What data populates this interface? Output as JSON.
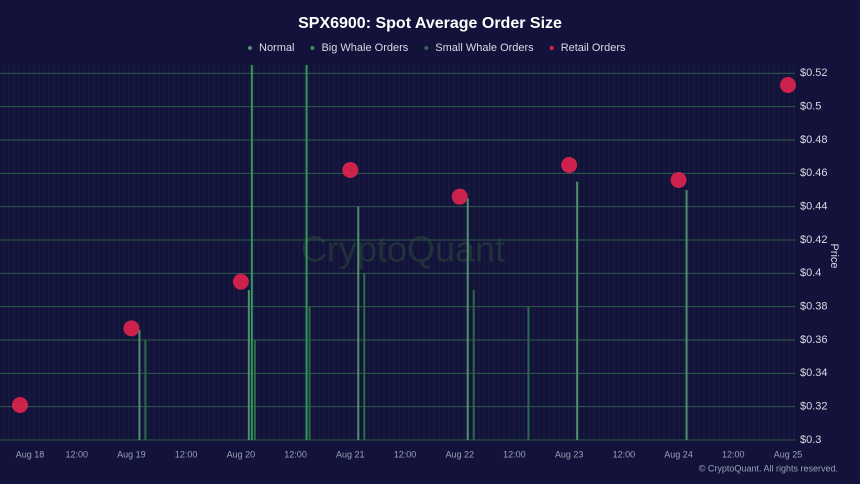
{
  "chart_data": {
    "type": "bubble-spike",
    "title": "SPX6900: Spot Average Order Size",
    "y_label": "Price",
    "watermark": "CryptoQuant",
    "credit": "© CryptoQuant. All rights reserved.",
    "categories": [
      "Aug 18",
      "12:00",
      "Aug 19",
      "12:00",
      "Aug 20",
      "12:00",
      "Aug 21",
      "12:00",
      "Aug 22",
      "12:00",
      "Aug 23",
      "12:00",
      "Aug 24",
      "12:00",
      "Aug 25"
    ],
    "ylim": [
      0.3,
      0.525
    ],
    "yticks": [
      {
        "value": 0.3,
        "label": "$0.3"
      },
      {
        "value": 0.32,
        "label": "$0.32"
      },
      {
        "value": 0.34,
        "label": "$0.34"
      },
      {
        "value": 0.36,
        "label": "$0.36"
      },
      {
        "value": 0.38,
        "label": "$0.38"
      },
      {
        "value": 0.4,
        "label": "$0.4"
      },
      {
        "value": 0.42,
        "label": "$0.42"
      },
      {
        "value": 0.44,
        "label": "$0.44"
      },
      {
        "value": 0.46,
        "label": "$0.46"
      },
      {
        "value": 0.48,
        "label": "$0.48"
      },
      {
        "value": 0.5,
        "label": "$0.5"
      },
      {
        "value": 0.52,
        "label": "$0.52"
      }
    ],
    "grid": true,
    "series": [
      {
        "name": "Normal",
        "color": "#4f8f6c",
        "style": "spike",
        "values": [
          null,
          null,
          0.366,
          null,
          0.39,
          null,
          0.44,
          null,
          0.445,
          null,
          0.455,
          null,
          0.45,
          null,
          null
        ]
      },
      {
        "name": "Big Whale Orders",
        "color": "#2f9a5c",
        "style": "spike",
        "values": [
          null,
          null,
          null,
          null,
          0.525,
          0.525,
          null,
          null,
          null,
          null,
          null,
          null,
          null,
          null,
          null
        ]
      },
      {
        "name": "Small Whale Orders",
        "color": "#2a6b4a",
        "style": "spike",
        "values": [
          null,
          null,
          0.36,
          null,
          0.36,
          0.38,
          0.4,
          null,
          0.39,
          0.38,
          null,
          null,
          null,
          null,
          null
        ]
      },
      {
        "name": "Retail Orders",
        "color": "#e0234e",
        "style": "bubble",
        "values": [
          0.321,
          null,
          0.367,
          null,
          0.395,
          null,
          0.462,
          null,
          0.446,
          null,
          0.465,
          null,
          0.456,
          null,
          0.513
        ]
      }
    ]
  }
}
